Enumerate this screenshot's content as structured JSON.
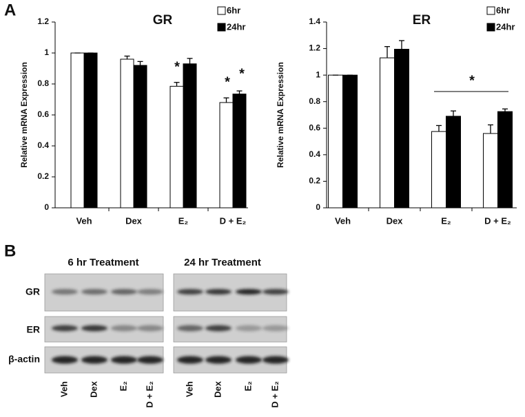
{
  "panel_labels": [
    "A",
    "B"
  ],
  "chart_data": [
    {
      "type": "bar",
      "title": "GR",
      "y_label": "Relative mRNA Expression",
      "categories": [
        "Veh",
        "Dex",
        "E₂",
        "D + E₂"
      ],
      "series": [
        {
          "name": "6hr",
          "color": "#ffffff",
          "values": [
            1.0,
            0.96,
            0.785,
            0.68
          ],
          "errors": [
            0,
            0.02,
            0.025,
            0.03
          ]
        },
        {
          "name": "24hr",
          "color": "#000000",
          "values": [
            1.0,
            0.92,
            0.93,
            0.735
          ],
          "errors": [
            0,
            0.025,
            0.035,
            0.02
          ]
        }
      ],
      "ylim": [
        0,
        1.2
      ],
      "yticks": [
        0,
        0.2,
        0.4,
        0.6,
        0.8,
        1,
        1.2
      ],
      "annotations": [
        "*",
        "*",
        "*"
      ]
    },
    {
      "type": "bar",
      "title": "ER",
      "y_label": "Relative mRNA Expression",
      "categories": [
        "Veh",
        "Dex",
        "E₂",
        "D + E₂"
      ],
      "series": [
        {
          "name": "6hr",
          "color": "#ffffff",
          "values": [
            1.0,
            1.13,
            0.575,
            0.56
          ],
          "errors": [
            0,
            0.085,
            0.045,
            0.065
          ]
        },
        {
          "name": "24hr",
          "color": "#000000",
          "values": [
            1.0,
            1.195,
            0.69,
            0.725
          ],
          "errors": [
            0,
            0.065,
            0.04,
            0.02
          ]
        }
      ],
      "ylim": [
        0,
        1.4
      ],
      "yticks": [
        0,
        0.2,
        0.4,
        0.6,
        0.8,
        1,
        1.2,
        1.4
      ],
      "annotations": [
        "*"
      ]
    }
  ],
  "blot": {
    "headers": [
      "6 hr Treatment",
      "24 hr Treatment"
    ],
    "rows": [
      "GR",
      "ER",
      "β-actin"
    ],
    "lanes": [
      "Veh",
      "Dex",
      "E₂",
      "D + E₂"
    ]
  }
}
